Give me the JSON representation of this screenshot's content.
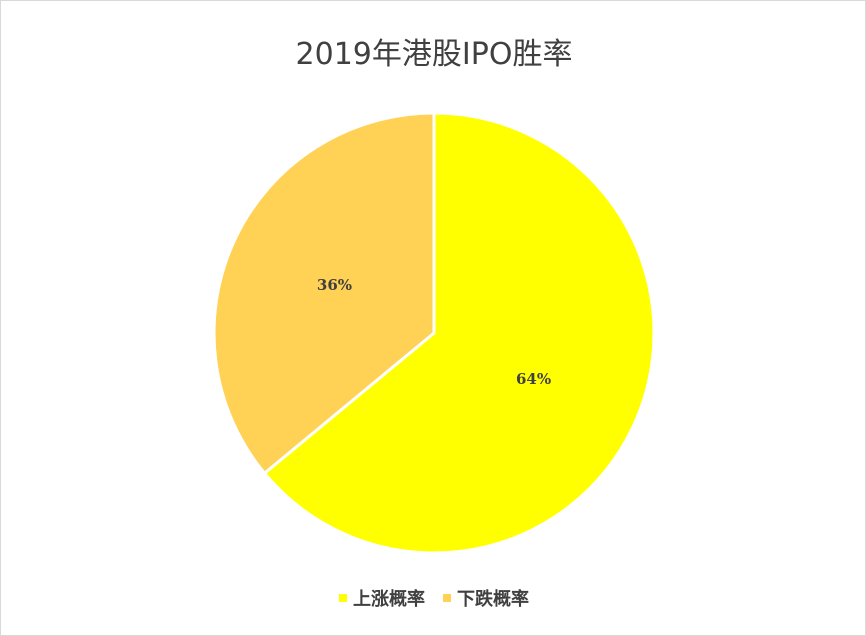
{
  "chart_data": {
    "type": "pie",
    "title": "2019年港股IPO胜率",
    "slices": [
      {
        "name": "上涨概率",
        "value": 64,
        "label": "64%",
        "color": "#ffff00"
      },
      {
        "name": "下跌概率",
        "value": 36,
        "label": "36%",
        "color": "#ffd155"
      }
    ],
    "legend_position": "bottom",
    "start_angle": "12 o'clock",
    "direction": "clockwise"
  }
}
